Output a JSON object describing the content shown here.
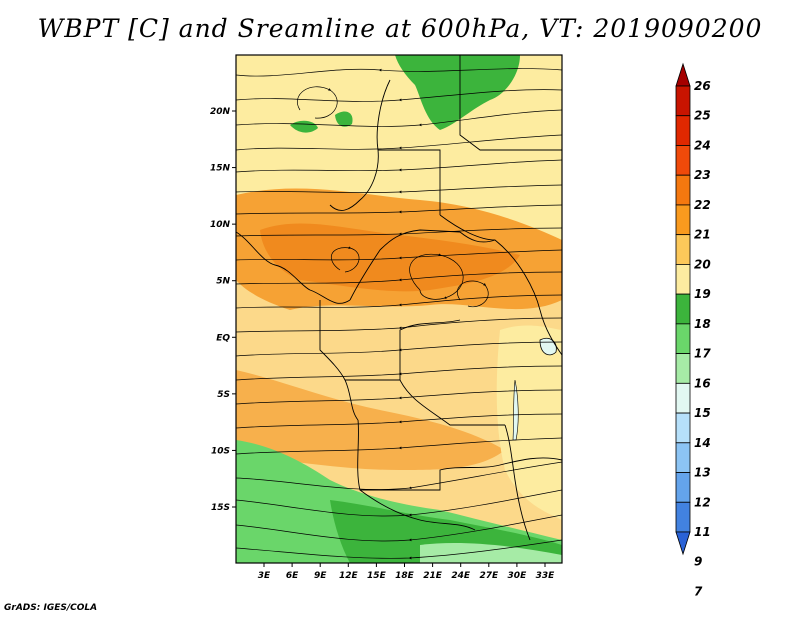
{
  "title": "WBPT [C] and Sreamline at 600hPa, VT: 2019090200",
  "credit": "GrADS: IGES/COLA",
  "axes": {
    "lon_labels": [
      "3E",
      "6E",
      "9E",
      "12E",
      "15E",
      "18E",
      "21E",
      "24E",
      "27E",
      "30E",
      "33E"
    ],
    "lon_values": [
      3,
      6,
      9,
      12,
      15,
      18,
      21,
      24,
      27,
      30,
      33
    ],
    "lat_labels": [
      "20N",
      "15N",
      "10N",
      "5N",
      "EQ",
      "5S",
      "10S",
      "15S"
    ],
    "lat_values": [
      20,
      15,
      10,
      5,
      0,
      -5,
      -10,
      -15
    ],
    "lon_range": [
      0,
      35
    ],
    "lat_range": [
      -20,
      25
    ]
  },
  "colorbar": {
    "labels": [
      "26",
      "25",
      "24",
      "23",
      "22",
      "21",
      "20",
      "19",
      "18",
      "17",
      "16",
      "15",
      "14",
      "13",
      "12",
      "11",
      "9",
      "7"
    ],
    "colors": [
      "#a50000",
      "#c81400",
      "#e02800",
      "#f04a0a",
      "#f5780f",
      "#f99a1e",
      "#fcc85a",
      "#fdeca0",
      "#3cb43c",
      "#6ad66a",
      "#a6eba6",
      "#e2f8f2",
      "#b6e0fa",
      "#8cc4f4",
      "#64a4ec",
      "#4282e0",
      "#2a62d6"
    ]
  },
  "field": {
    "variable": "WBPT [C]",
    "level": "600hPa",
    "valid_time": "2019090200"
  }
}
